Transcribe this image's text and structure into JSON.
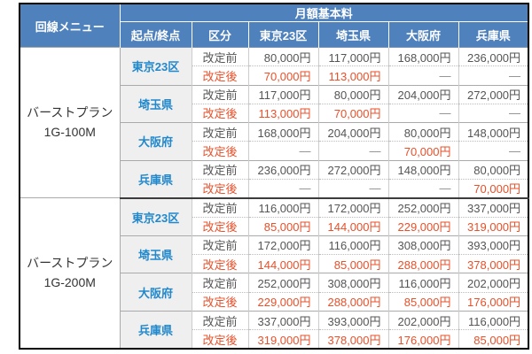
{
  "table": {
    "header": {
      "line_menu": "回線メニュー",
      "monthly_fee": "月額基本料",
      "origin_dest": "起点/終点",
      "category": "区分",
      "columns": [
        "東京23区",
        "埼玉県",
        "大阪府",
        "兵庫県"
      ]
    },
    "row_labels": {
      "before": "改定前",
      "after": "改定後"
    },
    "colors": {
      "header_bg": "#4f81bd",
      "header_text": "#ffffff",
      "revised_text": "#e8502a",
      "origin_text": "#2288cc",
      "origin_bg": "#efefef"
    },
    "sections": [
      {
        "plan_line1": "バーストプラン",
        "plan_line2": "1G-100M",
        "groups": [
          {
            "origin": "東京23区",
            "before": [
              "80,000円",
              "117,000円",
              "168,000円",
              "236,000円"
            ],
            "after": [
              "70,000円",
              "113,000円",
              "—",
              "—"
            ]
          },
          {
            "origin": "埼玉県",
            "before": [
              "117,000円",
              "80,000円",
              "204,000円",
              "272,000円"
            ],
            "after": [
              "113,000円",
              "70,000円",
              "—",
              "—"
            ]
          },
          {
            "origin": "大阪府",
            "before": [
              "168,000円",
              "204,000円",
              "80,000円",
              "148,000円"
            ],
            "after": [
              "—",
              "—",
              "70,000円",
              "—"
            ]
          },
          {
            "origin": "兵庫県",
            "before": [
              "236,000円",
              "272,000円",
              "148,000円",
              "80,000円"
            ],
            "after": [
              "—",
              "—",
              "—",
              "70,000円"
            ]
          }
        ]
      },
      {
        "plan_line1": "バーストプラン",
        "plan_line2": "1G-200M",
        "groups": [
          {
            "origin": "東京23区",
            "before": [
              "116,000円",
              "172,000円",
              "252,000円",
              "337,000円"
            ],
            "after": [
              "85,000円",
              "144,000円",
              "229,000円",
              "319,000円"
            ]
          },
          {
            "origin": "埼玉県",
            "before": [
              "172,000円",
              "116,000円",
              "308,000円",
              "393,000円"
            ],
            "after": [
              "144,000円",
              "85,000円",
              "288,000円",
              "378,000円"
            ]
          },
          {
            "origin": "大阪府",
            "before": [
              "252,000円",
              "308,000円",
              "116,000円",
              "202,000円"
            ],
            "after": [
              "229,000円",
              "288,000円",
              "85,000円",
              "176,000円"
            ]
          },
          {
            "origin": "兵庫県",
            "before": [
              "337,000円",
              "393,000円",
              "202,000円",
              "116,000円"
            ],
            "after": [
              "319,000円",
              "378,000円",
              "176,000円",
              "85,000円"
            ]
          }
        ]
      }
    ]
  }
}
